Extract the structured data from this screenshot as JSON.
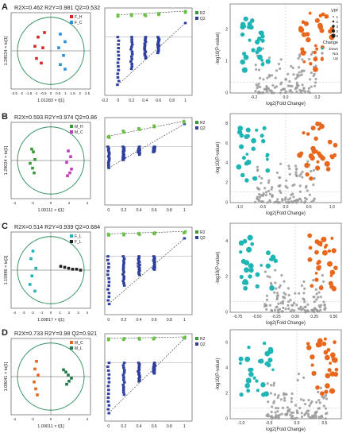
{
  "figure": {
    "background": "#ffffff"
  },
  "colors": {
    "red": "#d62728",
    "blue": "#2b8fd8",
    "green": "#3a9a3a",
    "purple": "#c03cc0",
    "maroon": "#8a1f3a",
    "teal": "#20b5b5",
    "black": "#222222",
    "orange": "#e8671c",
    "darkgreen": "#1f7a4a",
    "bluebar": "#2e3f9e",
    "lime": "#6cc04a",
    "gray": "#9a9a9a"
  },
  "panels": [
    {
      "id": "A",
      "letter": "A",
      "scores_title": "R2X=0.462 R2Y=0.981 Q2=0.532",
      "scores_ylabel": "1.28524 × to[1]",
      "scores_xlabel": "1.01283 × t[1]",
      "scores_ticks": [
        "-2.5",
        "-2",
        "-1.5",
        "-1",
        "-0.5",
        "0",
        "0.5",
        "1",
        "1.5",
        "2",
        "2.5"
      ],
      "scores_legend": [
        {
          "label": "F_H",
          "color": "#d62728"
        },
        {
          "label": "F_C",
          "color": "#2b8fd8"
        }
      ],
      "perm_ticks": [
        "-0.2",
        "0",
        "0.2",
        "0.4",
        "0.6",
        "0.8",
        "1"
      ],
      "perm_legend": [
        {
          "label": "R2",
          "color": "#3a9a3a"
        },
        {
          "label": "Q2",
          "color": "#2e3f9e"
        }
      ],
      "volcano_xticks": [
        "-0.2",
        "0.0",
        "0.2"
      ],
      "volcano_yticks": [
        "0",
        "1",
        "2"
      ],
      "volcano_xlabel": "log2(Fold Change)",
      "volcano_ylabel": "-log10(P-value)",
      "volcano_legend": {
        "vip_title": "VIP",
        "vip_items": [
          "1",
          "2",
          "3",
          "4",
          "5"
        ],
        "change_title": "Change",
        "change_items": [
          {
            "label": "Down",
            "color": "#20b5b5"
          },
          {
            "label": "Not",
            "color": "#9a9a9a"
          },
          {
            "label": "Up",
            "color": "#e8671c"
          }
        ]
      }
    },
    {
      "id": "B",
      "letter": "B",
      "scores_title": "R2X=0.593 R2Y=0.974 Q2=0.86",
      "scores_ylabel": "1.29024 × to[1]",
      "scores_xlabel": "1.00111 × t[1]",
      "scores_ticks": [
        "-4",
        "-2",
        "0",
        "2",
        "4"
      ],
      "scores_legend": [
        {
          "label": "M_H",
          "color": "#3a9a3a"
        },
        {
          "label": "M_C",
          "color": "#c03cc0"
        }
      ],
      "perm_ticks": [
        "0",
        "0.2",
        "0.4",
        "0.6",
        "0.8",
        "1"
      ],
      "perm_legend": [
        {
          "label": "R2",
          "color": "#3a9a3a"
        },
        {
          "label": "Q2",
          "color": "#2e3f9e"
        }
      ],
      "volcano_xticks": [
        "-1.0",
        "-0.5",
        "0.0",
        "0.5",
        "1.0"
      ],
      "volcano_yticks": [
        "0",
        "2",
        "4",
        "6",
        "8"
      ],
      "volcano_xlabel": "log2(Fold Change)",
      "volcano_ylabel": "-log10(P-value)"
    },
    {
      "id": "C",
      "letter": "C",
      "scores_title": "R2X=0.514 R2Y=0.939 Q2=0.684",
      "scores_ylabel": "1.15986 × to[1]",
      "scores_xlabel": "1.00817 × t[1]",
      "scores_ticks": [
        "-4",
        "-3",
        "-2",
        "-1",
        "0",
        "1",
        "2",
        "3",
        "4"
      ],
      "scores_legend": [
        {
          "label": "F_L",
          "color": "#20b5b5"
        },
        {
          "label": "F_L",
          "color": "#222222"
        }
      ],
      "perm_ticks": [
        "0",
        "0.2",
        "0.4",
        "0.6",
        "0.8",
        "1"
      ],
      "perm_legend": [
        {
          "label": "R2",
          "color": "#3a9a3a"
        },
        {
          "label": "Q2",
          "color": "#2e3f9e"
        }
      ],
      "volcano_xticks": [
        "-0.75",
        "-0.50",
        "-0.25",
        "0.00",
        "0.25",
        "0.50"
      ],
      "volcano_yticks": [
        "0",
        "2",
        "4"
      ],
      "volcano_xlabel": "log2(Fold Change)",
      "volcano_ylabel": "-log10(P-value)"
    },
    {
      "id": "D",
      "letter": "D",
      "scores_title": "R2X=0.733 R2Y=0.98 Q2=0.921",
      "scores_ylabel": "1.09041 × to[1]",
      "scores_xlabel": "1.00011 × t[1]",
      "scores_ticks": [
        "-4",
        "-2",
        "0",
        "2",
        "4"
      ],
      "scores_legend": [
        {
          "label": "M_C",
          "color": "#e8671c"
        },
        {
          "label": "M_L",
          "color": "#1f7a4a"
        }
      ],
      "perm_ticks": [
        "0",
        "0.2",
        "0.4",
        "0.6",
        "0.8",
        "1"
      ],
      "perm_legend": [
        {
          "label": "R2",
          "color": "#3a9a3a"
        },
        {
          "label": "Q2",
          "color": "#2e3f9e"
        }
      ],
      "volcano_xticks": [
        "-1.0",
        "-0.5",
        "0.0",
        "0.5"
      ],
      "volcano_yticks": [
        "0",
        "2",
        "4",
        "6"
      ],
      "volcano_xlabel": "log2(Fold Change)",
      "volcano_ylabel": "-log10(P-value)"
    }
  ],
  "chart_data": [
    {
      "type": "scatter",
      "panel": "A",
      "plot": "OPLS-DA scores",
      "xlim": [
        -2.5,
        2.5
      ],
      "ylim": [
        -2.5,
        2.5
      ],
      "series": [
        {
          "name": "F_H",
          "points": [
            [
              -0.8,
              0.9
            ],
            [
              -0.4,
              1.2
            ],
            [
              -1.0,
              0.3
            ],
            [
              -0.5,
              0.2
            ],
            [
              -0.9,
              -0.5
            ],
            [
              -0.6,
              -0.8
            ]
          ]
        },
        {
          "name": "F_C",
          "points": [
            [
              0.6,
              1.1
            ],
            [
              0.9,
              0.6
            ],
            [
              0.5,
              0.2
            ],
            [
              0.8,
              -0.3
            ],
            [
              0.6,
              -0.9
            ],
            [
              0.9,
              -1.2
            ]
          ]
        }
      ]
    },
    {
      "type": "scatter",
      "panel": "A",
      "plot": "permutation test",
      "xlim": [
        -0.2,
        1.1
      ],
      "series": [
        {
          "name": "R2",
          "points": [
            [
              0,
              0.84
            ],
            [
              0.2,
              0.86
            ],
            [
              0.4,
              0.86
            ],
            [
              0.6,
              0.9
            ],
            [
              1,
              0.98
            ]
          ]
        },
        {
          "name": "Q2",
          "points": [
            [
              0,
              -1.8
            ],
            [
              0.2,
              -1.2
            ],
            [
              0.4,
              -0.8
            ],
            [
              0.6,
              -0.6
            ],
            [
              1,
              0.53
            ]
          ]
        }
      ]
    },
    {
      "type": "scatter",
      "panel": "A",
      "plot": "volcano",
      "xlim": [
        -0.35,
        0.35
      ],
      "ylim": [
        0,
        2.8
      ]
    },
    {
      "type": "scatter",
      "panel": "B",
      "plot": "OPLS-DA scores",
      "xlim": [
        -5,
        5
      ],
      "ylim": [
        -4,
        4
      ],
      "series": [
        {
          "name": "M_H",
          "points": [
            [
              -2.4,
              1.2
            ],
            [
              -2.2,
              0.9
            ],
            [
              -2.0,
              0.1
            ],
            [
              -2.6,
              -0.3
            ],
            [
              -2.3,
              -0.8
            ],
            [
              -2.1,
              -1.3
            ]
          ]
        },
        {
          "name": "M_C",
          "points": [
            [
              2.2,
              1.0
            ],
            [
              2.5,
              0.4
            ],
            [
              2.0,
              -0.2
            ],
            [
              2.6,
              -0.9
            ],
            [
              2.4,
              -1.3
            ],
            [
              2.1,
              -1.6
            ]
          ]
        }
      ]
    },
    {
      "type": "scatter",
      "panel": "B",
      "plot": "permutation test",
      "xlim": [
        -0.05,
        1.1
      ],
      "series": [
        {
          "name": "R2",
          "points": [
            [
              0,
              0.4
            ],
            [
              0.2,
              0.6
            ],
            [
              0.4,
              0.7
            ],
            [
              0.6,
              0.8
            ],
            [
              1,
              0.97
            ]
          ]
        },
        {
          "name": "Q2",
          "points": [
            [
              0,
              -0.8
            ],
            [
              0.2,
              -0.5
            ],
            [
              0.4,
              -0.3
            ],
            [
              0.6,
              -0.2
            ],
            [
              1,
              0.86
            ]
          ]
        }
      ]
    },
    {
      "type": "scatter",
      "panel": "B",
      "plot": "volcano",
      "xlim": [
        -1.2,
        1.2
      ],
      "ylim": [
        0,
        9
      ]
    },
    {
      "type": "scatter",
      "panel": "C",
      "plot": "OPLS-DA scores",
      "xlim": [
        -4,
        4
      ],
      "ylim": [
        -4,
        4
      ],
      "series": [
        {
          "name": "F_L",
          "points": [
            [
              -1.8,
              2.0
            ],
            [
              -2.0,
              1.2
            ],
            [
              -1.5,
              0.2
            ],
            [
              -1.9,
              -0.6
            ],
            [
              -2.1,
              -1.5
            ],
            [
              -1.6,
              -2.2
            ]
          ]
        },
        {
          "name": "F_L",
          "points": [
            [
              1.0,
              0.4
            ],
            [
              1.4,
              0.3
            ],
            [
              1.8,
              0.2
            ],
            [
              2.2,
              0.1
            ],
            [
              2.6,
              0.1
            ],
            [
              3.0,
              0.0
            ]
          ]
        }
      ]
    },
    {
      "type": "scatter",
      "panel": "C",
      "plot": "permutation test",
      "xlim": [
        -0.05,
        1.1
      ],
      "series": [
        {
          "name": "R2",
          "points": [
            [
              0,
              0.85
            ],
            [
              0.2,
              0.86
            ],
            [
              0.4,
              0.88
            ],
            [
              0.6,
              0.9
            ],
            [
              1,
              0.94
            ]
          ]
        },
        {
          "name": "Q2",
          "points": [
            [
              0,
              -1.8
            ],
            [
              0.2,
              -1.1
            ],
            [
              0.4,
              -0.7
            ],
            [
              0.6,
              -0.5
            ],
            [
              1,
              0.68
            ]
          ]
        }
      ]
    },
    {
      "type": "scatter",
      "panel": "C",
      "plot": "volcano",
      "xlim": [
        -0.85,
        0.6
      ],
      "ylim": [
        0,
        5
      ]
    },
    {
      "type": "scatter",
      "panel": "D",
      "plot": "OPLS-DA scores",
      "xlim": [
        -5,
        5
      ],
      "ylim": [
        -5,
        5
      ],
      "series": [
        {
          "name": "M_C",
          "points": [
            [
              -1.8,
              2.0
            ],
            [
              -2.0,
              1.0
            ],
            [
              -1.6,
              0.2
            ],
            [
              -2.1,
              -0.7
            ],
            [
              -1.9,
              -1.6
            ],
            [
              -1.7,
              -2.4
            ]
          ]
        },
        {
          "name": "M_L",
          "points": [
            [
              1.6,
              0.9
            ],
            [
              1.9,
              0.6
            ],
            [
              2.2,
              0.2
            ],
            [
              2.6,
              -0.2
            ],
            [
              2.3,
              -0.6
            ],
            [
              2.0,
              -1.0
            ]
          ]
        }
      ]
    },
    {
      "type": "scatter",
      "panel": "D",
      "plot": "permutation test",
      "xlim": [
        -0.05,
        1.1
      ],
      "series": [
        {
          "name": "R2",
          "points": [
            [
              0,
              0.92
            ],
            [
              0.2,
              0.93
            ],
            [
              0.4,
              0.94
            ],
            [
              0.6,
              0.95
            ],
            [
              1,
              0.98
            ]
          ]
        },
        {
          "name": "Q2",
          "points": [
            [
              0,
              -1.9
            ],
            [
              0.2,
              -1.2
            ],
            [
              0.4,
              -0.7
            ],
            [
              0.6,
              -0.4
            ],
            [
              1,
              0.92
            ]
          ]
        }
      ]
    },
    {
      "type": "scatter",
      "panel": "D",
      "plot": "volcano",
      "xlim": [
        -1.2,
        0.8
      ],
      "ylim": [
        0,
        7
      ]
    }
  ]
}
